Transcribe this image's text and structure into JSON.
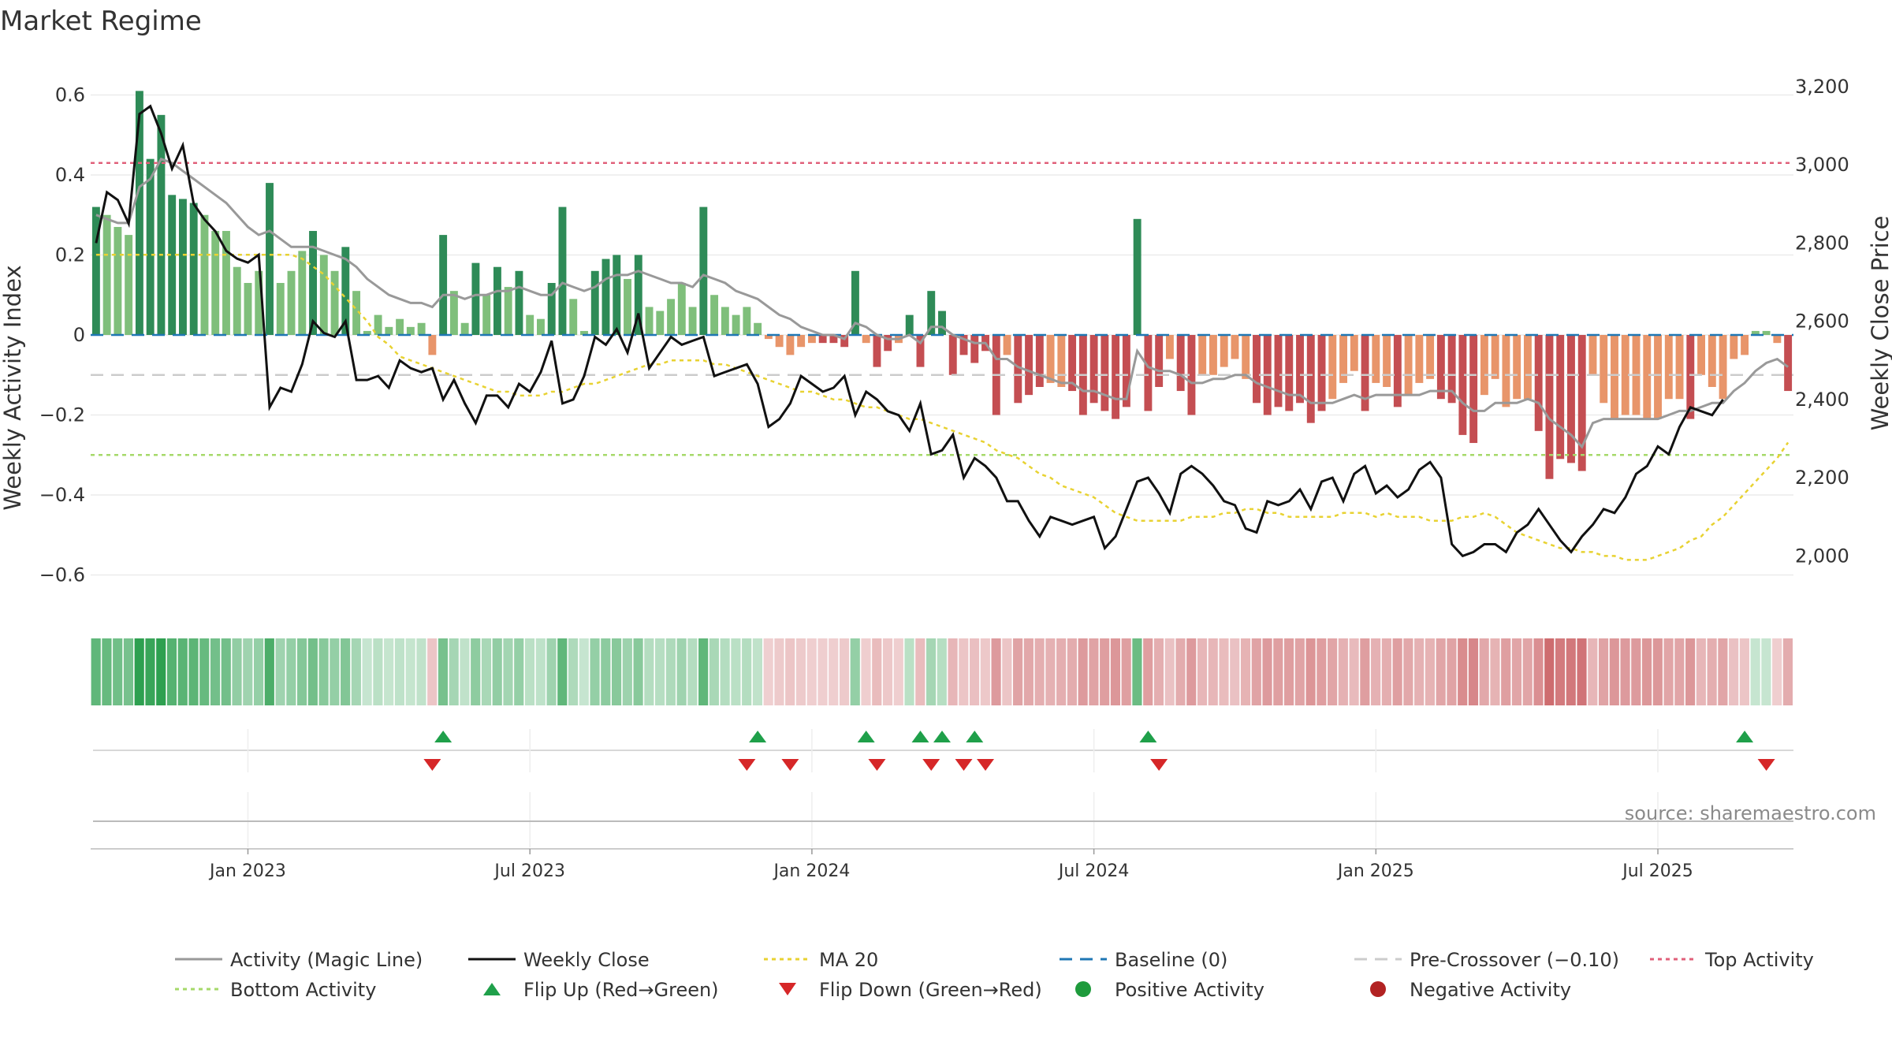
{
  "chart_data": {
    "type": "bar",
    "title": "Market Regime",
    "ylabel_left": "Weekly Activity Index",
    "ylabel_right": "Weekly Close Price",
    "ylim_left": [
      -0.66,
      0.66
    ],
    "ylim_right": [
      1890,
      3240
    ],
    "yticks_left": [
      {
        "value": 0.6,
        "label": "0.6"
      },
      {
        "value": 0.4,
        "label": "0.4"
      },
      {
        "value": 0.2,
        "label": "0.2"
      },
      {
        "value": 0,
        "label": "0"
      },
      {
        "value": -0.2,
        "label": "−0.2"
      },
      {
        "value": -0.4,
        "label": "−0.4"
      },
      {
        "value": -0.6,
        "label": "−0.6"
      }
    ],
    "yticks_right": [
      {
        "value": 3200,
        "label": "3,200"
      },
      {
        "value": 3000,
        "label": "3,000"
      },
      {
        "value": 2800,
        "label": "2,800"
      },
      {
        "value": 2600,
        "label": "2,600"
      },
      {
        "value": 2400,
        "label": "2,400"
      },
      {
        "value": 2200,
        "label": "2,200"
      },
      {
        "value": 2000,
        "label": "2,000"
      }
    ],
    "x_ticks": [
      {
        "week": 14,
        "label": "Jan 2023"
      },
      {
        "week": 40,
        "label": "Jul 2023"
      },
      {
        "week": 66,
        "label": "Jan 2024"
      },
      {
        "week": 92,
        "label": "Jul 2024"
      },
      {
        "week": 118,
        "label": "Jan 2025"
      },
      {
        "week": 144,
        "label": "Jul 2025"
      }
    ],
    "week_count": 157,
    "reference_lines": {
      "top_activity": 0.43,
      "bottom_activity": -0.3,
      "pre_crossover": -0.1,
      "baseline": 0
    },
    "activity": [
      0.32,
      0.3,
      0.27,
      0.25,
      0.61,
      0.44,
      0.55,
      0.35,
      0.34,
      0.33,
      0.3,
      0.26,
      0.26,
      0.17,
      0.13,
      0.16,
      0.38,
      0.13,
      0.16,
      0.21,
      0.26,
      0.2,
      0.16,
      0.22,
      0.11,
      0.01,
      0.05,
      0.02,
      0.04,
      0.02,
      0.03,
      -0.05,
      0.25,
      0.11,
      0.03,
      0.18,
      0.1,
      0.17,
      0.12,
      0.16,
      0.05,
      0.04,
      0.13,
      0.32,
      0.09,
      0.01,
      0.16,
      0.19,
      0.2,
      0.14,
      0.2,
      0.07,
      0.06,
      0.09,
      0.13,
      0.07,
      0.32,
      0.1,
      0.07,
      0.05,
      0.07,
      0.03,
      -0.01,
      -0.03,
      -0.05,
      -0.03,
      -0.02,
      -0.02,
      -0.02,
      -0.03,
      0.16,
      -0.02,
      -0.08,
      -0.04,
      -0.02,
      0.05,
      -0.08,
      0.11,
      0.06,
      -0.1,
      -0.05,
      -0.07,
      -0.04,
      -0.2,
      -0.05,
      -0.17,
      -0.15,
      -0.13,
      -0.12,
      -0.13,
      -0.14,
      -0.2,
      -0.17,
      -0.19,
      -0.21,
      -0.18,
      0.29,
      -0.19,
      -0.13,
      -0.06,
      -0.14,
      -0.2,
      -0.1,
      -0.1,
      -0.08,
      -0.06,
      -0.11,
      -0.17,
      -0.2,
      -0.18,
      -0.19,
      -0.17,
      -0.22,
      -0.19,
      -0.16,
      -0.12,
      -0.09,
      -0.19,
      -0.12,
      -0.13,
      -0.18,
      -0.15,
      -0.12,
      -0.11,
      -0.16,
      -0.17,
      -0.25,
      -0.27,
      -0.15,
      -0.11,
      -0.18,
      -0.16,
      -0.16,
      -0.24,
      -0.36,
      -0.31,
      -0.32,
      -0.34,
      -0.1,
      -0.17,
      -0.21,
      -0.2,
      -0.2,
      -0.21,
      -0.21,
      -0.16,
      -0.16,
      -0.21,
      -0.1,
      -0.13,
      -0.16,
      -0.06,
      -0.05,
      0.01,
      0.01,
      -0.02,
      -0.14
    ],
    "magic_line": [
      0.3,
      0.29,
      0.28,
      0.28,
      0.37,
      0.39,
      0.44,
      0.43,
      0.41,
      0.39,
      0.37,
      0.35,
      0.33,
      0.3,
      0.27,
      0.25,
      0.26,
      0.24,
      0.22,
      0.22,
      0.22,
      0.21,
      0.2,
      0.19,
      0.17,
      0.14,
      0.12,
      0.1,
      0.09,
      0.08,
      0.08,
      0.07,
      0.1,
      0.1,
      0.09,
      0.1,
      0.1,
      0.11,
      0.11,
      0.12,
      0.11,
      0.1,
      0.1,
      0.13,
      0.12,
      0.11,
      0.12,
      0.14,
      0.15,
      0.15,
      0.16,
      0.15,
      0.14,
      0.13,
      0.13,
      0.12,
      0.15,
      0.14,
      0.13,
      0.11,
      0.1,
      0.09,
      0.07,
      0.05,
      0.04,
      0.02,
      0.01,
      0.0,
      0.0,
      -0.01,
      0.03,
      0.02,
      0.0,
      -0.01,
      -0.01,
      0.0,
      -0.02,
      0.02,
      0.02,
      0.0,
      -0.01,
      -0.02,
      -0.02,
      -0.06,
      -0.06,
      -0.08,
      -0.09,
      -0.1,
      -0.11,
      -0.12,
      -0.12,
      -0.14,
      -0.14,
      -0.15,
      -0.16,
      -0.16,
      -0.04,
      -0.08,
      -0.09,
      -0.09,
      -0.1,
      -0.12,
      -0.12,
      -0.11,
      -0.11,
      -0.1,
      -0.1,
      -0.12,
      -0.13,
      -0.14,
      -0.15,
      -0.15,
      -0.17,
      -0.17,
      -0.17,
      -0.16,
      -0.15,
      -0.16,
      -0.15,
      -0.15,
      -0.15,
      -0.15,
      -0.15,
      -0.14,
      -0.14,
      -0.14,
      -0.17,
      -0.19,
      -0.19,
      -0.17,
      -0.17,
      -0.17,
      -0.16,
      -0.17,
      -0.21,
      -0.23,
      -0.25,
      -0.28,
      -0.22,
      -0.21,
      -0.21,
      -0.21,
      -0.21,
      -0.21,
      -0.21,
      -0.2,
      -0.19,
      -0.19,
      -0.18,
      -0.17,
      -0.17,
      -0.14,
      -0.12,
      -0.09,
      -0.07,
      -0.06,
      -0.08
    ],
    "weekly_close": [
      2800,
      2930,
      2910,
      2850,
      3130,
      3150,
      3080,
      2990,
      3050,
      2900,
      2860,
      2830,
      2780,
      2760,
      2750,
      2770,
      2380,
      2430,
      2420,
      2490,
      2600,
      2570,
      2560,
      2600,
      2450,
      2450,
      2460,
      2430,
      2500,
      2480,
      2470,
      2480,
      2400,
      2450,
      2390,
      2340,
      2410,
      2410,
      2380,
      2440,
      2420,
      2470,
      2550,
      2390,
      2400,
      2460,
      2560,
      2540,
      2580,
      2520,
      2620,
      2480,
      2520,
      2560,
      2540,
      2550,
      2560,
      2460,
      2470,
      2480,
      2490,
      2440,
      2330,
      2350,
      2390,
      2460,
      2440,
      2420,
      2430,
      2460,
      2360,
      2420,
      2400,
      2370,
      2360,
      2320,
      2390,
      2260,
      2270,
      2310,
      2200,
      2250,
      2230,
      2200,
      2140,
      2140,
      2090,
      2050,
      2100,
      2090,
      2080,
      2090,
      2100,
      2020,
      2050,
      2120,
      2190,
      2200,
      2160,
      2110,
      2210,
      2230,
      2210,
      2180,
      2140,
      2130,
      2070,
      2060,
      2140,
      2130,
      2140,
      2170,
      2120,
      2190,
      2200,
      2140,
      2210,
      2230,
      2160,
      2180,
      2150,
      2170,
      2220,
      2240,
      2200,
      2030,
      2000,
      2010,
      2030,
      2030,
      2010,
      2060,
      2080,
      2120,
      2080,
      2040,
      2010,
      2050,
      2080,
      2120,
      2110,
      2150,
      2210,
      2230,
      2280,
      2260,
      2330,
      2380,
      2370,
      2360,
      2400
    ],
    "ma20": [
      2770,
      2770,
      2770,
      2770,
      2770,
      2770,
      2770,
      2770,
      2770,
      2770,
      2770,
      2770,
      2770,
      2770,
      2770,
      2770,
      2770,
      2770,
      2770,
      2760,
      2740,
      2720,
      2690,
      2660,
      2630,
      2600,
      2560,
      2540,
      2510,
      2500,
      2490,
      2480,
      2470,
      2460,
      2450,
      2440,
      2430,
      2420,
      2420,
      2410,
      2410,
      2410,
      2420,
      2420,
      2430,
      2440,
      2440,
      2450,
      2460,
      2470,
      2480,
      2490,
      2490,
      2500,
      2500,
      2500,
      2500,
      2490,
      2490,
      2480,
      2470,
      2460,
      2450,
      2440,
      2430,
      2420,
      2420,
      2410,
      2400,
      2400,
      2390,
      2380,
      2380,
      2370,
      2360,
      2350,
      2350,
      2340,
      2330,
      2320,
      2310,
      2300,
      2290,
      2270,
      2260,
      2250,
      2230,
      2210,
      2200,
      2180,
      2170,
      2160,
      2150,
      2130,
      2110,
      2100,
      2090,
      2090,
      2090,
      2090,
      2090,
      2100,
      2100,
      2100,
      2110,
      2110,
      2120,
      2120,
      2110,
      2110,
      2100,
      2100,
      2100,
      2100,
      2100,
      2110,
      2110,
      2110,
      2100,
      2110,
      2100,
      2100,
      2100,
      2090,
      2090,
      2090,
      2100,
      2100,
      2110,
      2100,
      2080,
      2060,
      2050,
      2040,
      2030,
      2020,
      2020,
      2010,
      2010,
      2000,
      2000,
      1990,
      1990,
      1990,
      2000,
      2010,
      2020,
      2040,
      2050,
      2080,
      2100,
      2130,
      2160,
      2190,
      2220,
      2250,
      2290
    ],
    "flip_up_weeks": [
      32,
      61,
      71,
      76,
      78,
      81,
      97,
      152
    ],
    "flip_down_weeks": [
      31,
      60,
      64,
      72,
      77,
      80,
      82,
      98,
      154
    ],
    "timeline_axis_line": true
  },
  "source_text": "source: sharemaestro.com",
  "legend": [
    {
      "label": "Activity (Magic Line)"
    },
    {
      "label": "Weekly Close"
    },
    {
      "label": "MA 20"
    },
    {
      "label": "Baseline (0)"
    },
    {
      "label": "Pre-Crossover (−0.10)"
    },
    {
      "label": "Top Activity"
    },
    {
      "label": "Bottom Activity"
    },
    {
      "label": "Flip Up (Red→Green)"
    },
    {
      "label": "Flip Down (Green→Red)"
    },
    {
      "label": "Positive Activity"
    },
    {
      "label": "Negative Activity"
    }
  ],
  "colors": {
    "pos_strong": "#2e8b57",
    "pos_light": "#7fbf7b",
    "neg_strong": "#c44e52",
    "neg_light": "#e8956a",
    "magic": "#999999",
    "close": "#111111",
    "ma20": "#e8d232",
    "baseline": "#1f77b4",
    "precross": "#cccccc",
    "top": "#e0607a",
    "bottom": "#a6d96a",
    "flip_up": "#1fa04a",
    "flip_down": "#d62728",
    "pos_dot": "#1e9b3c",
    "neg_dot": "#b22222"
  }
}
